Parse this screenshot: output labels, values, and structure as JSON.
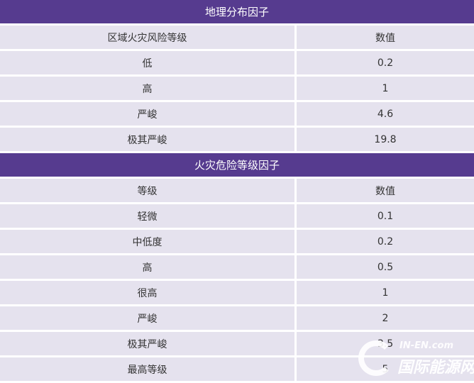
{
  "sections": [
    {
      "title": "地理分布因子",
      "header": [
        "区域火灾风险等级",
        "数值"
      ],
      "rows": [
        [
          "低",
          "0.2"
        ],
        [
          "高",
          "1"
        ],
        [
          "严峻",
          "4.6"
        ],
        [
          "极其严峻",
          "19.8"
        ]
      ]
    },
    {
      "title": "火灾危险等级因子",
      "header": [
        "等级",
        "数值"
      ],
      "rows": [
        [
          "轻微",
          "0.1"
        ],
        [
          "中低度",
          "0.2"
        ],
        [
          "高",
          "0.5"
        ],
        [
          "很高",
          "1"
        ],
        [
          "严峻",
          "2"
        ],
        [
          "极其严峻",
          "3.5"
        ],
        [
          "最高等级",
          "5"
        ]
      ]
    }
  ],
  "watermark": {
    "en": "IN-EN.com",
    "cn": "国际能源网"
  },
  "colors": {
    "header_bg": "#563b8f",
    "row_bg": "#e5e2ee"
  }
}
